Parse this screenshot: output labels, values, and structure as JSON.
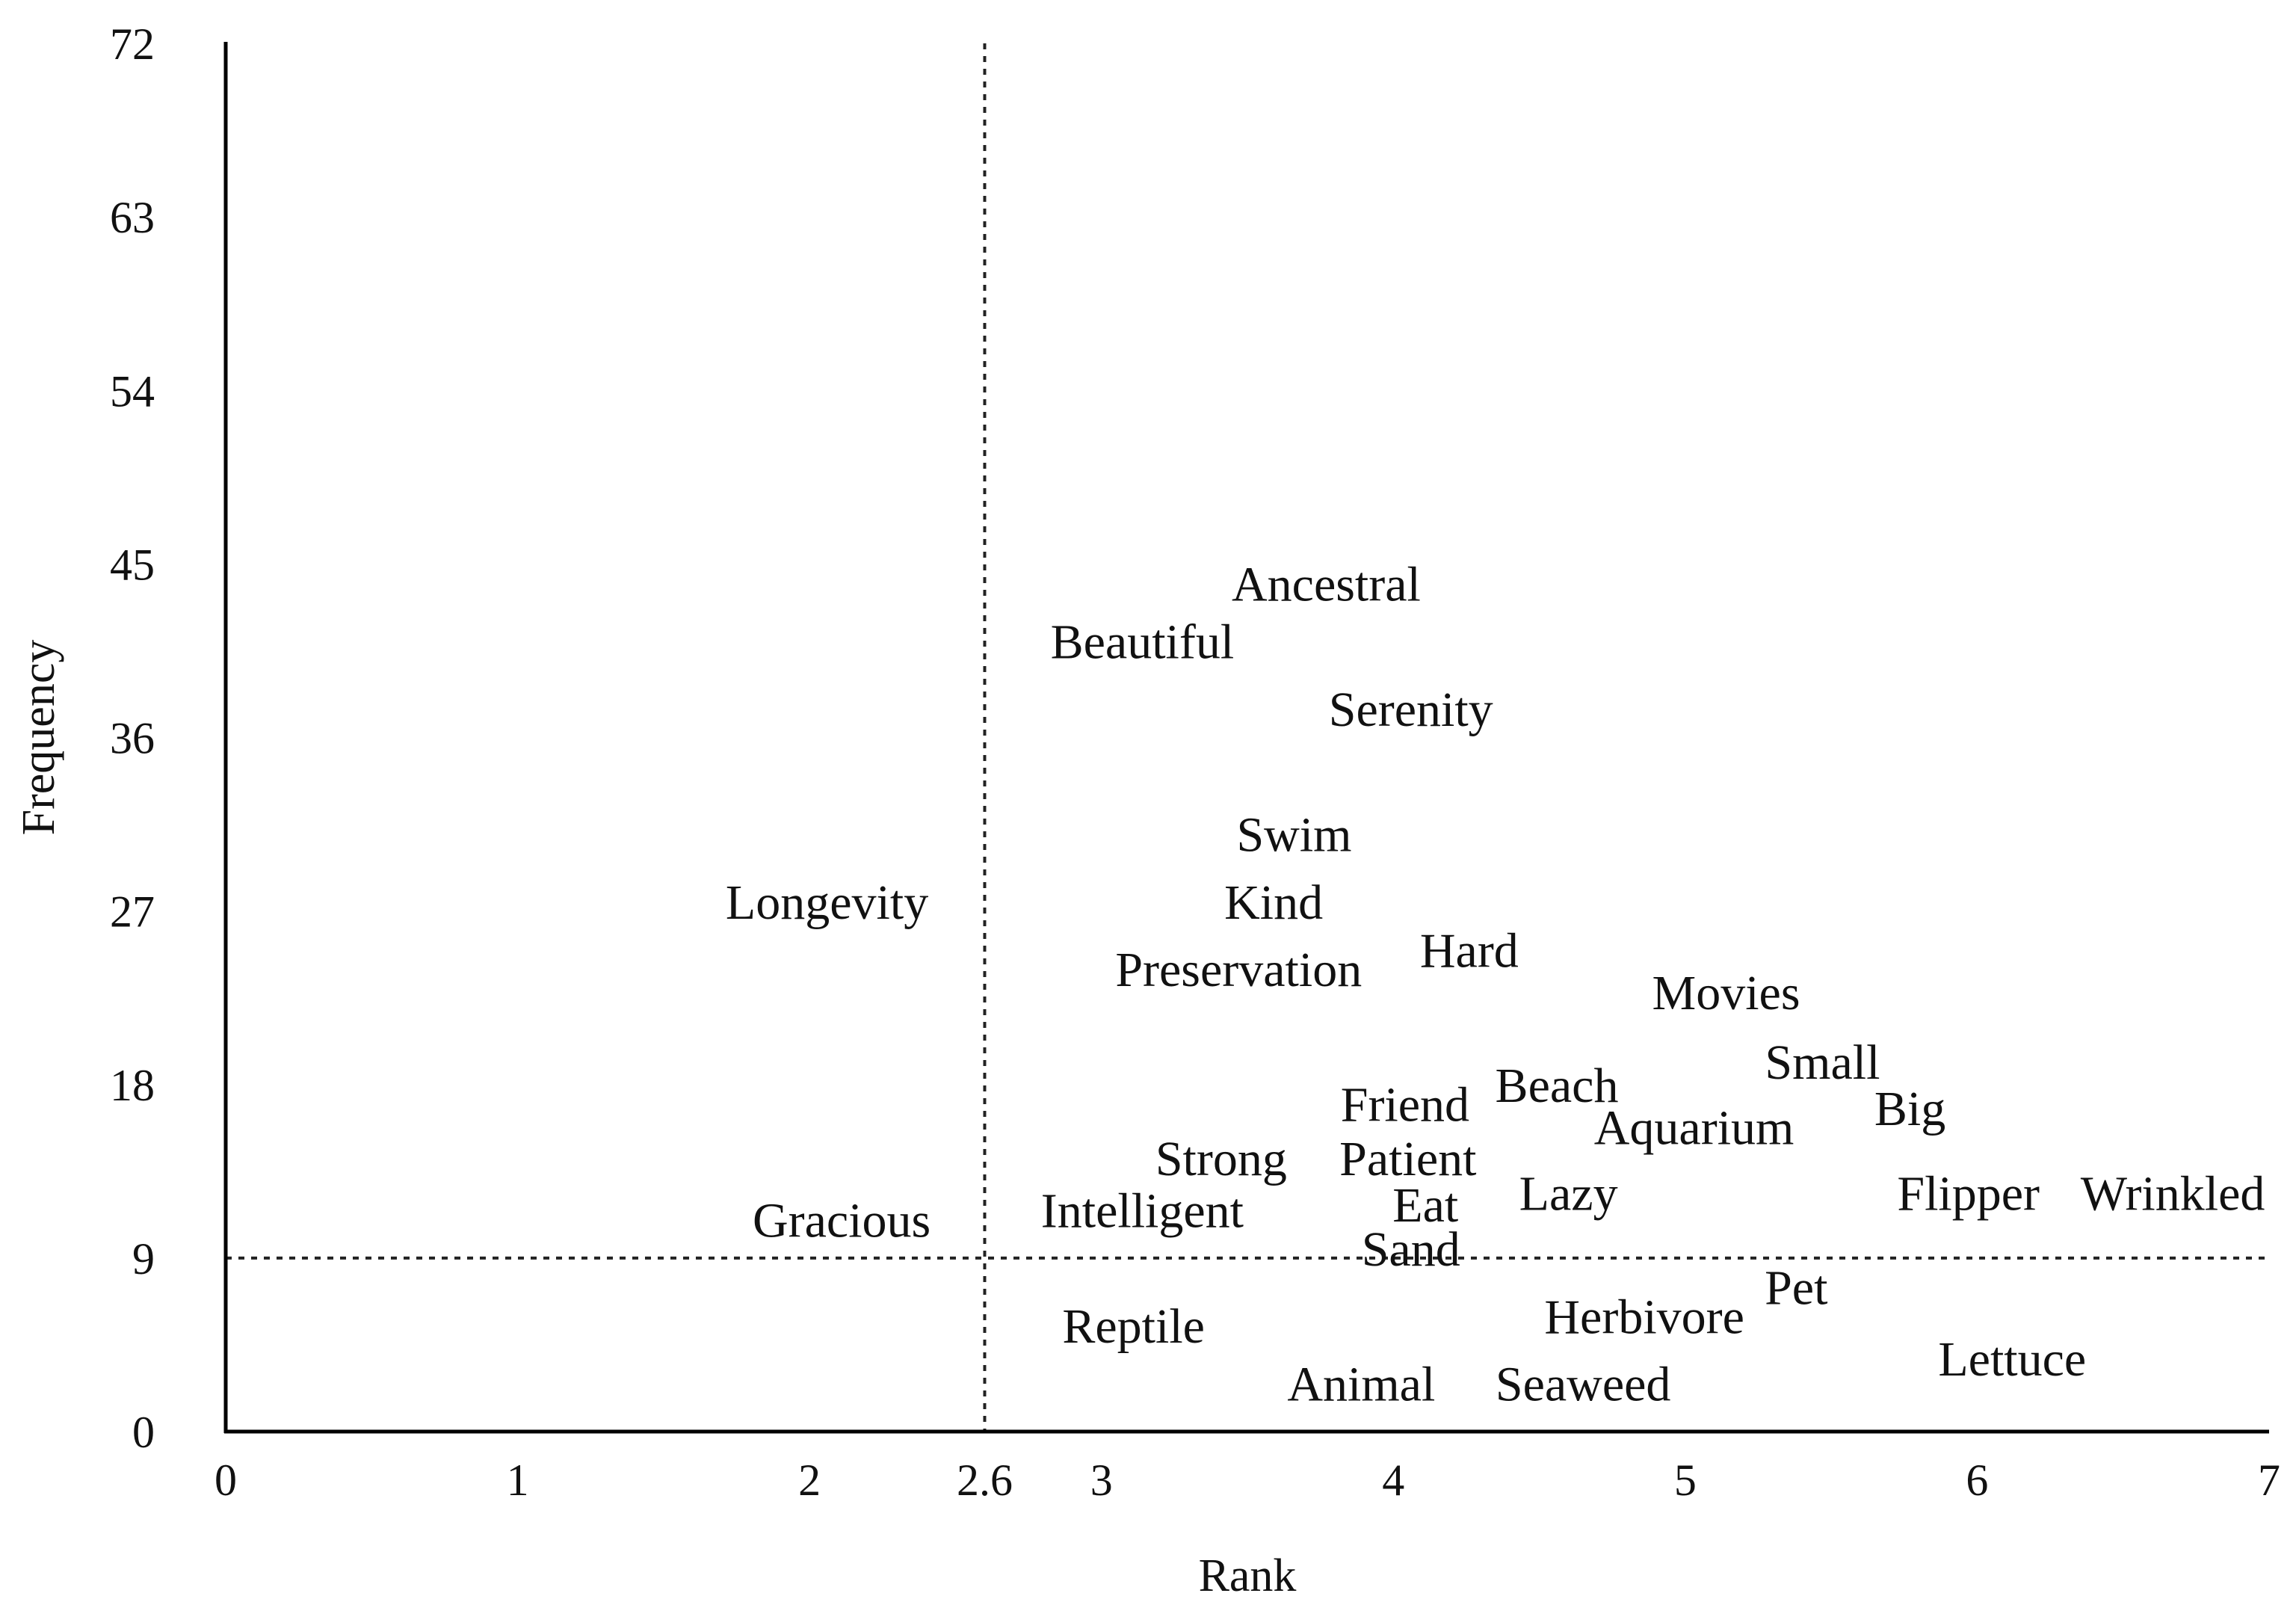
{
  "chart_data": {
    "type": "scatter",
    "title": "",
    "xlabel": "Rank",
    "ylabel": "Frequency",
    "xlim": [
      0,
      7
    ],
    "ylim": [
      0,
      72
    ],
    "xticks": [
      {
        "value": 0,
        "label": "0"
      },
      {
        "value": 1,
        "label": "1"
      },
      {
        "value": 2,
        "label": "2"
      },
      {
        "value": 2.6,
        "label": "2.6"
      },
      {
        "value": 3,
        "label": "3"
      },
      {
        "value": 4,
        "label": "4"
      },
      {
        "value": 5,
        "label": "5"
      },
      {
        "value": 6,
        "label": "6"
      },
      {
        "value": 7,
        "label": "7"
      }
    ],
    "yticks": [
      {
        "value": 0,
        "label": "0"
      },
      {
        "value": 9,
        "label": "9"
      },
      {
        "value": 18,
        "label": "18"
      },
      {
        "value": 27,
        "label": "27"
      },
      {
        "value": 36,
        "label": "36"
      },
      {
        "value": 45,
        "label": "45"
      },
      {
        "value": 54,
        "label": "54"
      },
      {
        "value": 63,
        "label": "63"
      },
      {
        "value": 72,
        "label": "72"
      }
    ],
    "reference_lines": {
      "x": 2.6,
      "y": 9,
      "style": "dotted"
    },
    "grid": false,
    "points": [
      {
        "label": "Ancestral",
        "x": 3.77,
        "y": 44
      },
      {
        "label": "Beautiful",
        "x": 3.14,
        "y": 41
      },
      {
        "label": "Serenity",
        "x": 4.06,
        "y": 37.5
      },
      {
        "label": "Swim",
        "x": 3.66,
        "y": 31
      },
      {
        "label": "Longevity",
        "x": 2.06,
        "y": 27.5
      },
      {
        "label": "Kind",
        "x": 3.59,
        "y": 27.5
      },
      {
        "label": "Hard",
        "x": 4.26,
        "y": 25
      },
      {
        "label": "Preservation",
        "x": 3.47,
        "y": 24
      },
      {
        "label": "Movies",
        "x": 5.14,
        "y": 22.8
      },
      {
        "label": "Small",
        "x": 5.47,
        "y": 19.2
      },
      {
        "label": "Beach",
        "x": 4.56,
        "y": 18
      },
      {
        "label": "Friend",
        "x": 4.04,
        "y": 17
      },
      {
        "label": "Big",
        "x": 5.77,
        "y": 16.8
      },
      {
        "label": "Aquarium",
        "x": 5.03,
        "y": 15.8
      },
      {
        "label": "Strong",
        "x": 3.41,
        "y": 14.2
      },
      {
        "label": "Patient",
        "x": 4.05,
        "y": 14.2
      },
      {
        "label": "Lazy",
        "x": 4.6,
        "y": 12.4
      },
      {
        "label": "Flipper",
        "x": 5.97,
        "y": 12.4
      },
      {
        "label": "Wrinkled",
        "x": 6.67,
        "y": 12.4
      },
      {
        "label": "Eat",
        "x": 4.11,
        "y": 11.8
      },
      {
        "label": "Intelligent",
        "x": 3.14,
        "y": 11.5
      },
      {
        "label": "Gracious",
        "x": 2.11,
        "y": 11
      },
      {
        "label": "Sand",
        "x": 4.06,
        "y": 9.5
      },
      {
        "label": "Pet",
        "x": 5.38,
        "y": 7.5
      },
      {
        "label": "Herbivore",
        "x": 4.86,
        "y": 6
      },
      {
        "label": "Reptile",
        "x": 3.11,
        "y": 5.5
      },
      {
        "label": "Lettuce",
        "x": 6.12,
        "y": 3.8
      },
      {
        "label": "Animal",
        "x": 3.89,
        "y": 2.5
      },
      {
        "label": "Seaweed",
        "x": 4.65,
        "y": 2.5
      }
    ]
  }
}
